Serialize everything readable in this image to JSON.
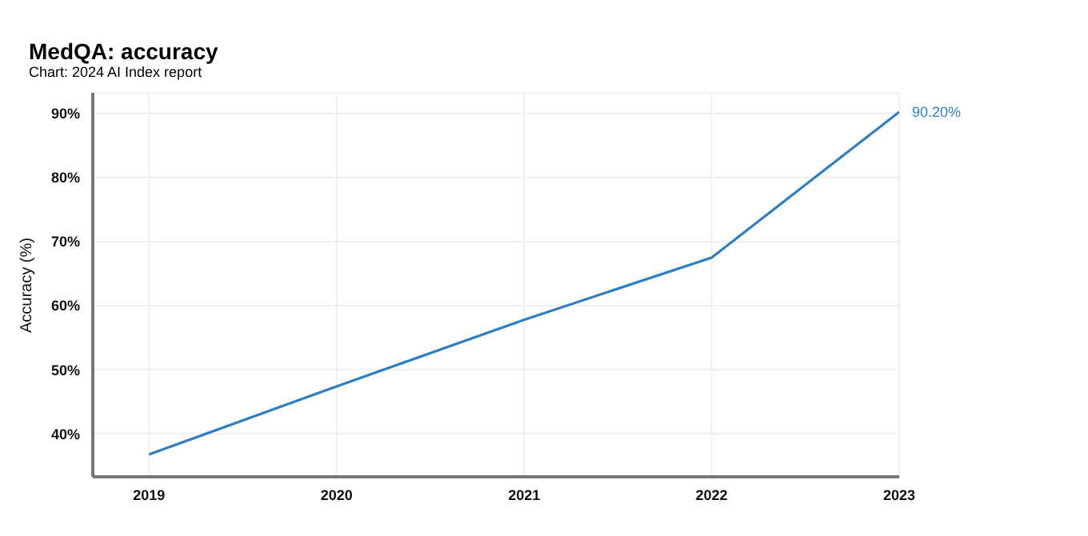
{
  "chart_data": {
    "type": "line",
    "title": "MedQA: accuracy",
    "subtitle": "Chart: 2024 AI Index report",
    "ylabel": "Accuracy (%)",
    "x": [
      2019,
      2020,
      2021,
      2022,
      2023
    ],
    "series": [
      {
        "color": "#2e7fc1",
        "values": [
          36.8,
          47.4,
          57.8,
          67.5,
          90.2
        ],
        "value_labels": [
          null,
          null,
          null,
          null,
          "90.20%"
        ]
      }
    ],
    "xlim": [
      2018.7,
      2023
    ],
    "xticks": [
      2019,
      2020,
      2021,
      2022,
      2023
    ],
    "ylim": [
      33.3,
      93.2
    ],
    "yticks": [
      {
        "value": 40,
        "label": "40%"
      },
      {
        "value": 50,
        "label": "50%"
      },
      {
        "value": 60,
        "label": "60%"
      },
      {
        "value": 70,
        "label": "70%"
      },
      {
        "value": 80,
        "label": "80%"
      },
      {
        "value": 90,
        "label": "90%"
      }
    ],
    "grid": true,
    "marker": "none",
    "line_style": "solid"
  }
}
